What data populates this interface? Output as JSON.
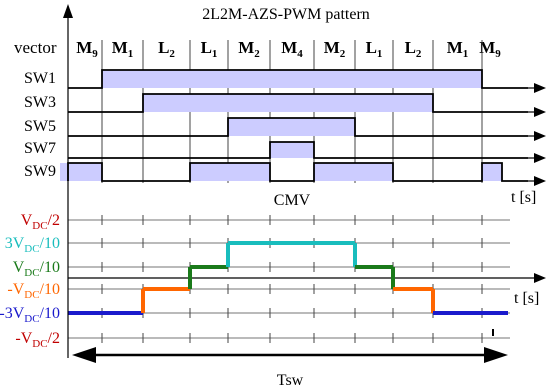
{
  "title": "2L2M-AZS-PWM pattern",
  "vector_label": "vector",
  "vectors": [
    {
      "base": "M",
      "sub": "9"
    },
    {
      "base": "M",
      "sub": "1"
    },
    {
      "base": "L",
      "sub": "2"
    },
    {
      "base": "L",
      "sub": "1"
    },
    {
      "base": "M",
      "sub": "2"
    },
    {
      "base": "M",
      "sub": "4"
    },
    {
      "base": "M",
      "sub": "2"
    },
    {
      "base": "L",
      "sub": "1"
    },
    {
      "base": "L",
      "sub": "2"
    },
    {
      "base": "M",
      "sub": "1"
    },
    {
      "base": "M",
      "sub": "9"
    }
  ],
  "switches": [
    {
      "label": "SW1",
      "high": [
        [
          1,
          10
        ]
      ]
    },
    {
      "label": "SW3",
      "high": [
        [
          2,
          9
        ]
      ]
    },
    {
      "label": "SW5",
      "high": [
        [
          4,
          7
        ]
      ]
    },
    {
      "label": "SW7",
      "high": [
        [
          5,
          6
        ]
      ]
    },
    {
      "label": "SW9",
      "high": [
        [
          0,
          1
        ],
        [
          3,
          5
        ],
        [
          6,
          8
        ],
        [
          10,
          11
        ]
      ]
    }
  ],
  "time_label_upper": "t [s]",
  "cmv_title": "CMV",
  "time_label_lower": "t [s]",
  "cmv_levels": [
    {
      "pre": "",
      "sub": "DC",
      "post": "/2",
      "color": "#c00000",
      "value": 0.5
    },
    {
      "pre": "3",
      "sub": "DC",
      "post": "/10",
      "color": "#19bdbd",
      "value": 0.3
    },
    {
      "pre": "",
      "sub": "DC",
      "post": "/10",
      "color": "#1a7a1a",
      "value": 0.1
    },
    {
      "pre": "-",
      "sub": "DC",
      "post": "/10",
      "color": "#ff6600",
      "value": -0.1
    },
    {
      "pre": "-3",
      "sub": "DC",
      "post": "/10",
      "color": "#1a1acc",
      "value": -0.3
    },
    {
      "pre": "-",
      "sub": "DC",
      "post": "/2",
      "color": "#c00000",
      "value": -0.5
    }
  ],
  "cmv_waveform": [
    -0.3,
    -0.3,
    -0.1,
    0.1,
    0.3,
    0.3,
    0.3,
    0.1,
    -0.1,
    -0.3,
    -0.3
  ],
  "period_label": "Tsw",
  "colors": {
    "pulse_fill": "#ccccff",
    "axis": "#000000",
    "grid": "#808080"
  }
}
